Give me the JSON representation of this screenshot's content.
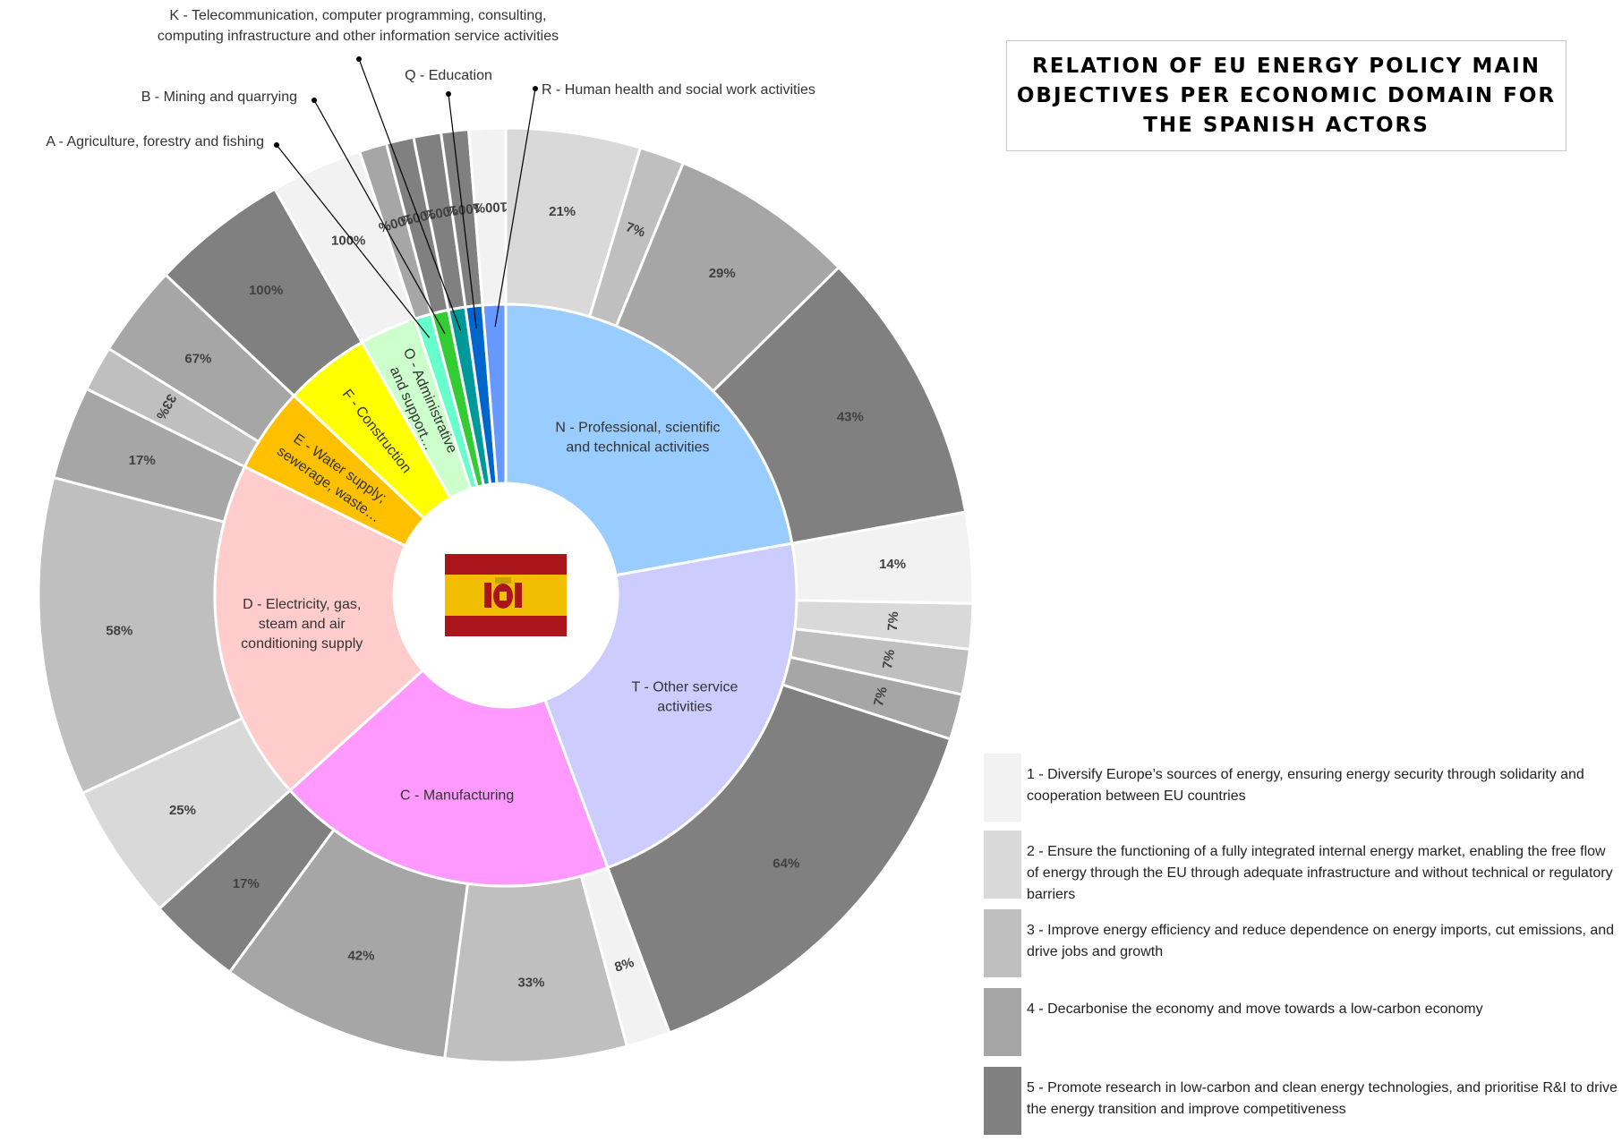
{
  "title": "RELATION OF EU ENERGY POLICY MAIN\nOBJECTIVES PER ECONOMIC DOMAIN FOR\nTHE SPANISH ACTORS",
  "chart_data": {
    "type": "sunburst",
    "inner_ring": [
      {
        "label": "N - Professional, scientific and technical activities",
        "value": 14,
        "color": "#99CCFF",
        "label_lines": [
          "N - Professional, scientific",
          "and technical activities"
        ]
      },
      {
        "label": "T - Other service activities",
        "value": 14,
        "color": "#CCCCFF",
        "label_lines": [
          "T - Other service",
          "activities"
        ]
      },
      {
        "label": "C - Manufacturing",
        "value": 12,
        "color": "#FF99FF",
        "label_lines": [
          "C - Manufacturing"
        ]
      },
      {
        "label": "D - Electricity, gas, steam and air conditioning supply",
        "value": 12,
        "color": "#FFCCCC",
        "label_lines": [
          "D - Electricity, gas,",
          "steam and air",
          "conditioning supply"
        ]
      },
      {
        "label": "E - Water supply; sewerage, waste…",
        "value": 3,
        "color": "#FFC000",
        "label_lines": [
          "E - Water supply;",
          "sewerage, waste…"
        ]
      },
      {
        "label": "F - Construction",
        "value": 3,
        "color": "#FFFF00",
        "label_lines": [
          "F - Construction"
        ]
      },
      {
        "label": "O - Administrative and support…",
        "value": 2,
        "color": "#CCFFCC",
        "label_lines": [
          "O - Administrative",
          "and support…"
        ]
      },
      {
        "label": "A - Agriculture, forestry and fishing",
        "value": 0.6,
        "color": "#66FFCC"
      },
      {
        "label": "B - Mining and quarrying",
        "value": 0.6,
        "color": "#33CC33"
      },
      {
        "label": "K - Telecommunication, computer programming, consulting, computing infrastructure and other information service activities",
        "value": 0.6,
        "color": "#009999"
      },
      {
        "label": "Q - Education",
        "value": 0.6,
        "color": "#0066CC"
      },
      {
        "label": "R - Human health and social work activities",
        "value": 0.8,
        "color": "#6699FF"
      }
    ],
    "outer_ring": [
      {
        "parent": "N - Professional, scientific and technical activities",
        "objective": 2,
        "value": 21,
        "label": "21%"
      },
      {
        "parent": "N - Professional, scientific and technical activities",
        "objective": 3,
        "value": 7,
        "label": "7%"
      },
      {
        "parent": "N - Professional, scientific and technical activities",
        "objective": 4,
        "value": 29,
        "label": "29%"
      },
      {
        "parent": "N - Professional, scientific and technical activities",
        "objective": 5,
        "value": 43,
        "label": "43%"
      },
      {
        "parent": "T - Other service activities",
        "objective": 1,
        "value": 14,
        "label": "14%"
      },
      {
        "parent": "T - Other service activities",
        "objective": 2,
        "value": 7,
        "label": "7%"
      },
      {
        "parent": "T - Other service activities",
        "objective": 3,
        "value": 7,
        "label": "7%"
      },
      {
        "parent": "T - Other service activities",
        "objective": 4,
        "value": 7,
        "label": "7%"
      },
      {
        "parent": "T - Other service activities",
        "objective": 5,
        "value": 64,
        "label": "64%"
      },
      {
        "parent": "C - Manufacturing",
        "objective": 1,
        "value": 8,
        "label": "8%"
      },
      {
        "parent": "C - Manufacturing",
        "objective": 3,
        "value": 33,
        "label": "33%"
      },
      {
        "parent": "C - Manufacturing",
        "objective": 4,
        "value": 42,
        "label": "42%"
      },
      {
        "parent": "C - Manufacturing",
        "objective": 5,
        "value": 17,
        "label": "17%"
      },
      {
        "parent": "D - Electricity, gas, steam and air conditioning supply",
        "objective": 2,
        "value": 25,
        "label": "25%"
      },
      {
        "parent": "D - Electricity, gas, steam and air conditioning supply",
        "objective": 3,
        "value": 58,
        "label": "58%"
      },
      {
        "parent": "D - Electricity, gas, steam and air conditioning supply",
        "objective": 4,
        "value": 17,
        "label": "17%"
      },
      {
        "parent": "E - Water supply; sewerage, waste…",
        "objective": 3,
        "value": 33,
        "label": "33%"
      },
      {
        "parent": "E - Water supply; sewerage, waste…",
        "objective": 4,
        "value": 67,
        "label": "67%"
      },
      {
        "parent": "F - Construction",
        "objective": 5,
        "value": 100,
        "label": "100%"
      },
      {
        "parent": "O - Administrative and support…",
        "objective": 1,
        "value": 100,
        "label": "100%"
      },
      {
        "parent": "A - Agriculture, forestry and fishing",
        "objective": 4,
        "value": 100,
        "label": "100%"
      },
      {
        "parent": "B - Mining and quarrying",
        "objective": 5,
        "value": 100,
        "label": "100%"
      },
      {
        "parent": "K - Telecommunication, computer programming, consulting, computing infrastructure and other information service activities",
        "objective": 5,
        "value": 100,
        "label": "100%"
      },
      {
        "parent": "Q - Education",
        "objective": 5,
        "value": 100,
        "label": "100%"
      },
      {
        "parent": "R - Human health and social work activities",
        "objective": 1,
        "value": 100,
        "label": "100%"
      }
    ],
    "callouts": [
      {
        "segment": "R - Human health and social work activities",
        "lines": [
          "R - Human health and social work activities"
        ]
      },
      {
        "segment": "Q - Education",
        "lines": [
          "Q - Education"
        ]
      },
      {
        "segment": "K - Telecommunication, computer programming, consulting, computing infrastructure and other information service activities",
        "lines": [
          "K - Telecommunication, computer programming, consulting,",
          "computing infrastructure and other information service activities"
        ]
      },
      {
        "segment": "B - Mining and quarrying",
        "lines": [
          "B - Mining and quarrying"
        ]
      },
      {
        "segment": "A - Agriculture, forestry and fishing",
        "lines": [
          "A - Agriculture, forestry and fishing"
        ]
      }
    ],
    "objective_colors": {
      "1": "#F2F2F2",
      "2": "#D9D9D9",
      "3": "#BFBFBF",
      "4": "#A6A6A6",
      "5": "#808080"
    },
    "center_image": "spain-flag"
  },
  "legend": [
    {
      "objective": 1,
      "color": "#F2F2F2",
      "text": "1 - Diversify Europe’s sources of energy, ensuring energy security through solidarity and cooperation between EU countries"
    },
    {
      "objective": 2,
      "color": "#D9D9D9",
      "text": "2 - Ensure the functioning of a fully integrated internal energy market, enabling the free flow of energy through the EU through adequate infrastructure and without technical or regulatory barriers"
    },
    {
      "objective": 3,
      "color": "#BFBFBF",
      "text": "3 - Improve energy efficiency and reduce dependence on energy imports, cut emissions, and drive jobs and growth"
    },
    {
      "objective": 4,
      "color": "#A6A6A6",
      "text": "4 - Decarbonise the economy and move towards a low-carbon economy"
    },
    {
      "objective": 5,
      "color": "#808080",
      "text": "5 - Promote research in low-carbon and clean energy technologies, and prioritise R&I to drive the energy transition and improve competitiveness"
    }
  ]
}
